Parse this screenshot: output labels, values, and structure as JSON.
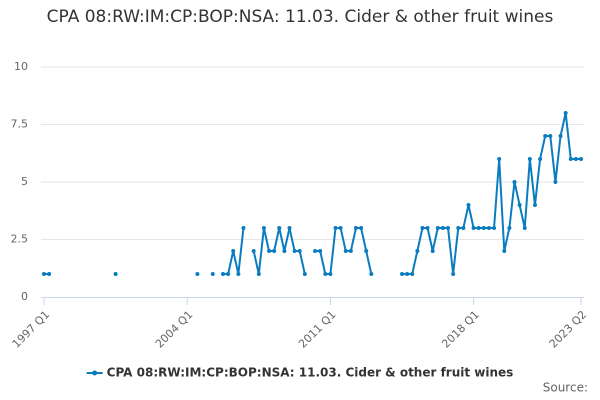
{
  "chart_data": {
    "type": "line",
    "title": "CPA 08:RW:IM:CP:BOP:NSA: 11.03. Cider & other fruit wines",
    "source": "Source:",
    "categories": [
      "1997 Q1",
      null,
      null,
      null,
      null,
      null,
      null,
      null,
      null,
      null,
      null,
      null,
      null,
      null,
      null,
      null,
      null,
      null,
      null,
      null,
      null,
      null,
      null,
      null,
      null,
      null,
      null,
      null,
      "2004 Q1",
      null,
      null,
      null,
      null,
      null,
      null,
      null,
      null,
      null,
      null,
      null,
      null,
      null,
      null,
      null,
      null,
      null,
      null,
      null,
      null,
      null,
      null,
      null,
      null,
      null,
      null,
      null,
      "2011 Q1",
      null,
      null,
      null,
      null,
      null,
      null,
      null,
      null,
      null,
      null,
      null,
      null,
      null,
      null,
      null,
      null,
      null,
      null,
      null,
      null,
      null,
      null,
      null,
      null,
      null,
      null,
      null,
      "2018 Q1",
      null,
      null,
      null,
      null,
      null,
      null,
      null,
      null,
      null,
      null,
      null,
      null,
      null,
      null,
      null,
      null,
      null,
      null,
      null,
      null,
      "2023 Q2"
    ],
    "series": [
      {
        "name": "CPA 08:RW:IM:CP:BOP:NSA: 11.03. Cider & other fruit wines",
        "color": "#0b7cbf",
        "values": [
          1,
          1,
          null,
          null,
          null,
          null,
          null,
          null,
          null,
          null,
          null,
          null,
          null,
          null,
          1,
          null,
          null,
          null,
          null,
          null,
          null,
          null,
          null,
          null,
          null,
          null,
          null,
          null,
          null,
          null,
          1,
          null,
          null,
          1,
          null,
          1,
          1,
          2,
          1,
          3,
          null,
          2,
          1,
          3,
          2,
          2,
          3,
          2,
          3,
          2,
          2,
          1,
          null,
          2,
          2,
          1,
          1,
          3,
          3,
          2,
          2,
          3,
          3,
          2,
          1,
          null,
          null,
          null,
          null,
          null,
          1,
          1,
          1,
          2,
          3,
          3,
          2,
          3,
          3,
          3,
          1,
          3,
          3,
          4,
          3,
          3,
          3,
          3,
          3,
          6,
          2,
          3,
          5,
          4,
          3,
          6,
          4,
          6,
          7,
          7,
          5,
          7,
          8,
          6,
          6,
          6
        ]
      }
    ],
    "ylim": [
      0,
      10
    ],
    "yticks": [
      0,
      2.5,
      5,
      7.5,
      10
    ],
    "grid": true,
    "legend": "bottom"
  }
}
